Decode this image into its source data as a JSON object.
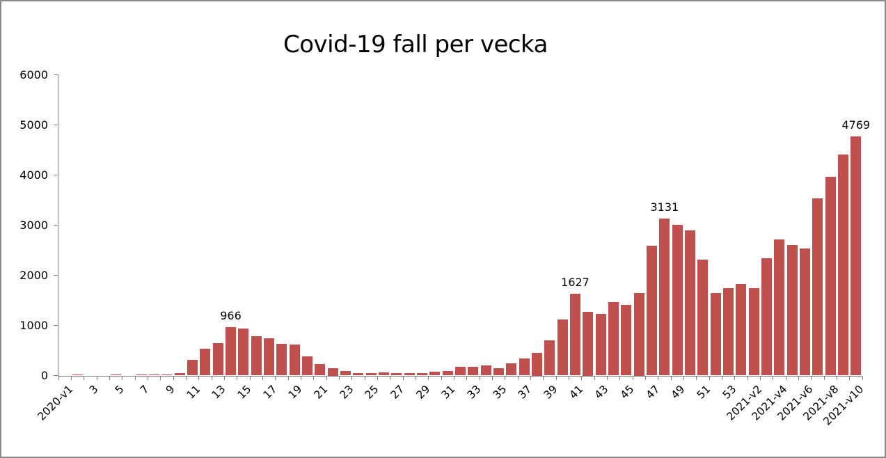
{
  "chart_data": {
    "type": "bar",
    "title": "Covid-19 fall per vecka",
    "bar_color": "#C0504D",
    "axis_color": "#808080",
    "text_color": "#000000",
    "grid": false,
    "legend": false,
    "ylim": [
      0,
      6000
    ],
    "yticks": [
      0,
      1000,
      2000,
      3000,
      4000,
      5000,
      6000
    ],
    "categories": [
      "2020-v1",
      "",
      "3",
      "",
      "5",
      "",
      "7",
      "",
      "9",
      "",
      "11",
      "",
      "13",
      "",
      "15",
      "",
      "17",
      "",
      "19",
      "",
      "21",
      "",
      "23",
      "",
      "25",
      "",
      "27",
      "",
      "29",
      "",
      "31",
      "",
      "33",
      "",
      "35",
      "",
      "37",
      "",
      "39",
      "",
      "41",
      "",
      "43",
      "",
      "45",
      "",
      "47",
      "",
      "49",
      "",
      "51",
      "",
      "53",
      "",
      "2021-v2",
      "",
      "2021-v4",
      "",
      "2021-v6",
      "",
      "2021-v8",
      "",
      "2021-v10"
    ],
    "values": [
      0,
      20,
      0,
      0,
      25,
      0,
      15,
      20,
      20,
      45,
      310,
      530,
      640,
      966,
      930,
      790,
      740,
      630,
      615,
      385,
      230,
      150,
      95,
      55,
      55,
      65,
      50,
      50,
      55,
      70,
      95,
      175,
      175,
      200,
      145,
      240,
      345,
      450,
      705,
      1120,
      1627,
      1275,
      1230,
      1465,
      1410,
      1650,
      2590,
      3131,
      3005,
      2890,
      2310,
      1640,
      1740,
      1820,
      1740,
      2340,
      2710,
      2600,
      2530,
      3530,
      3955,
      4405,
      4769
    ],
    "data_labels": [
      {
        "index": 13,
        "text": "966"
      },
      {
        "index": 40,
        "text": "1627"
      },
      {
        "index": 47,
        "text": "3131"
      },
      {
        "index": 62,
        "text": "4769"
      }
    ]
  }
}
